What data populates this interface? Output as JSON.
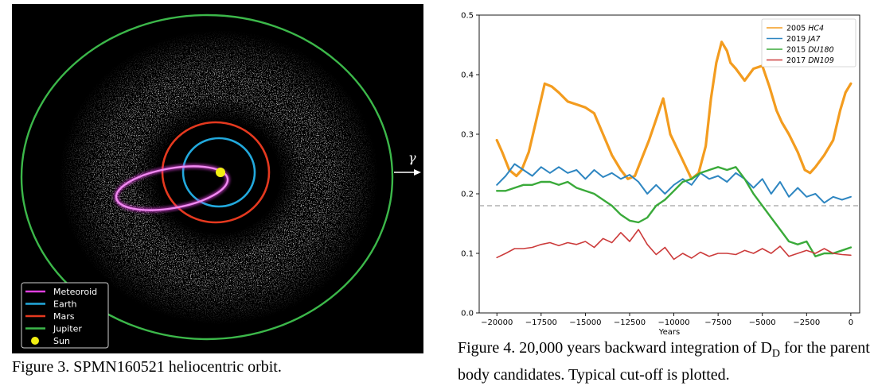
{
  "figure3": {
    "caption": "Figure 3. SPMN160521 heliocentric orbit.",
    "direction_label": "γ",
    "legend": [
      {
        "label": "Meteoroid",
        "color": "#e040e0",
        "kind": "line"
      },
      {
        "label": "Earth",
        "color": "#22a9dd",
        "kind": "line"
      },
      {
        "label": "Mars",
        "color": "#e5391f",
        "kind": "line"
      },
      {
        "label": "Jupiter",
        "color": "#3cb84a",
        "kind": "line"
      },
      {
        "label": "Sun",
        "color": "#f2ef12",
        "kind": "dot"
      }
    ]
  },
  "figure4": {
    "caption_parts": {
      "before": "Figure 4. 20,000 years backward integration of D",
      "sub": "D",
      "after": " for the parent body candidates. Typical cut-off is plotted."
    },
    "chart_data": {
      "type": "line",
      "xlabel": "Years",
      "ylabel": "",
      "xlim": [
        -21000,
        500
      ],
      "ylim": [
        0.0,
        0.5
      ],
      "xticks": [
        -20000,
        -17500,
        -15000,
        -12500,
        -10000,
        -7500,
        -5000,
        -2500,
        0
      ],
      "xtick_labels": [
        "−20000",
        "−17500",
        "−15000",
        "−12500",
        "−10000",
        "−7500",
        "−5000",
        "−2500",
        "0"
      ],
      "yticks": [
        0.0,
        0.1,
        0.2,
        0.3,
        0.4,
        0.5
      ],
      "ytick_labels": [
        "0.0",
        "0.1",
        "0.2",
        "0.3",
        "0.4",
        "0.5"
      ],
      "cutoff": 0.18,
      "legend_position": "top-right",
      "series": [
        {
          "name_prefix": "2005 ",
          "name_italic": "HC4",
          "color": "#f39c1f",
          "width": 3.2,
          "x": [
            -20000,
            -19700,
            -19300,
            -18900,
            -18600,
            -18200,
            -17800,
            -17300,
            -16900,
            -16500,
            -16000,
            -15500,
            -15000,
            -14500,
            -14000,
            -13500,
            -13000,
            -12600,
            -12200,
            -11800,
            -11400,
            -11000,
            -10600,
            -10200,
            -9800,
            -9400,
            -9000,
            -8600,
            -8200,
            -7900,
            -7600,
            -7300,
            -7000,
            -6800,
            -6500,
            -6000,
            -5500,
            -5000,
            -4600,
            -4200,
            -3900,
            -3500,
            -3000,
            -2600,
            -2300,
            -2000,
            -1500,
            -1000,
            -600,
            -300,
            0
          ],
          "y": [
            0.29,
            0.27,
            0.24,
            0.23,
            0.24,
            0.27,
            0.32,
            0.385,
            0.38,
            0.37,
            0.355,
            0.35,
            0.345,
            0.335,
            0.3,
            0.265,
            0.24,
            0.225,
            0.23,
            0.26,
            0.29,
            0.325,
            0.36,
            0.3,
            0.275,
            0.25,
            0.225,
            0.235,
            0.28,
            0.36,
            0.42,
            0.455,
            0.44,
            0.42,
            0.41,
            0.39,
            0.41,
            0.415,
            0.38,
            0.34,
            0.32,
            0.3,
            0.27,
            0.24,
            0.235,
            0.245,
            0.265,
            0.29,
            0.34,
            0.37,
            0.385
          ]
        },
        {
          "name_prefix": "2019 ",
          "name_italic": "JA7",
          "color": "#2e86c1",
          "width": 2.0,
          "x": [
            -20000,
            -19500,
            -19000,
            -18500,
            -18000,
            -17500,
            -17000,
            -16500,
            -16000,
            -15500,
            -15000,
            -14500,
            -14000,
            -13500,
            -13000,
            -12500,
            -12000,
            -11500,
            -11000,
            -10500,
            -10000,
            -9500,
            -9000,
            -8500,
            -8000,
            -7500,
            -7000,
            -6500,
            -6000,
            -5500,
            -5000,
            -4500,
            -4000,
            -3500,
            -3000,
            -2500,
            -2000,
            -1500,
            -1000,
            -500,
            0
          ],
          "y": [
            0.215,
            0.23,
            0.25,
            0.24,
            0.23,
            0.245,
            0.235,
            0.245,
            0.235,
            0.24,
            0.225,
            0.24,
            0.228,
            0.235,
            0.225,
            0.232,
            0.22,
            0.2,
            0.215,
            0.2,
            0.215,
            0.225,
            0.215,
            0.235,
            0.225,
            0.23,
            0.22,
            0.235,
            0.225,
            0.21,
            0.225,
            0.2,
            0.22,
            0.195,
            0.21,
            0.195,
            0.2,
            0.185,
            0.195,
            0.19,
            0.195
          ]
        },
        {
          "name_prefix": "2015 ",
          "name_italic": "DU180",
          "color": "#3aaa3a",
          "width": 2.4,
          "x": [
            -20000,
            -19500,
            -19000,
            -18500,
            -18000,
            -17500,
            -17000,
            -16500,
            -16000,
            -15500,
            -15000,
            -14500,
            -14000,
            -13500,
            -13000,
            -12500,
            -12000,
            -11500,
            -11000,
            -10500,
            -10000,
            -9500,
            -9000,
            -8500,
            -8000,
            -7500,
            -7000,
            -6500,
            -6000,
            -5500,
            -5000,
            -4500,
            -4000,
            -3500,
            -3000,
            -2500,
            -2000,
            -1500,
            -1000,
            -500,
            0
          ],
          "y": [
            0.205,
            0.205,
            0.21,
            0.215,
            0.215,
            0.22,
            0.22,
            0.215,
            0.22,
            0.21,
            0.205,
            0.2,
            0.19,
            0.18,
            0.165,
            0.155,
            0.152,
            0.16,
            0.18,
            0.19,
            0.205,
            0.22,
            0.225,
            0.235,
            0.24,
            0.245,
            0.24,
            0.245,
            0.225,
            0.2,
            0.18,
            0.16,
            0.14,
            0.12,
            0.115,
            0.12,
            0.095,
            0.1,
            0.1,
            0.105,
            0.11
          ]
        },
        {
          "name_prefix": "2017 ",
          "name_italic": "DN109",
          "color": "#cc3b3b",
          "width": 1.6,
          "x": [
            -20000,
            -19500,
            -19000,
            -18500,
            -18000,
            -17500,
            -17000,
            -16500,
            -16000,
            -15500,
            -15000,
            -14500,
            -14000,
            -13500,
            -13000,
            -12500,
            -12000,
            -11500,
            -11000,
            -10500,
            -10000,
            -9500,
            -9000,
            -8500,
            -8000,
            -7500,
            -7000,
            -6500,
            -6000,
            -5500,
            -5000,
            -4500,
            -4000,
            -3500,
            -3000,
            -2500,
            -2000,
            -1500,
            -1000,
            -500,
            0
          ],
          "y": [
            0.093,
            0.1,
            0.108,
            0.108,
            0.11,
            0.115,
            0.118,
            0.113,
            0.118,
            0.115,
            0.12,
            0.11,
            0.125,
            0.118,
            0.135,
            0.12,
            0.14,
            0.115,
            0.098,
            0.11,
            0.09,
            0.1,
            0.092,
            0.102,
            0.095,
            0.1,
            0.1,
            0.098,
            0.105,
            0.1,
            0.108,
            0.1,
            0.112,
            0.095,
            0.1,
            0.105,
            0.1,
            0.108,
            0.1,
            0.098,
            0.097
          ]
        }
      ]
    }
  }
}
